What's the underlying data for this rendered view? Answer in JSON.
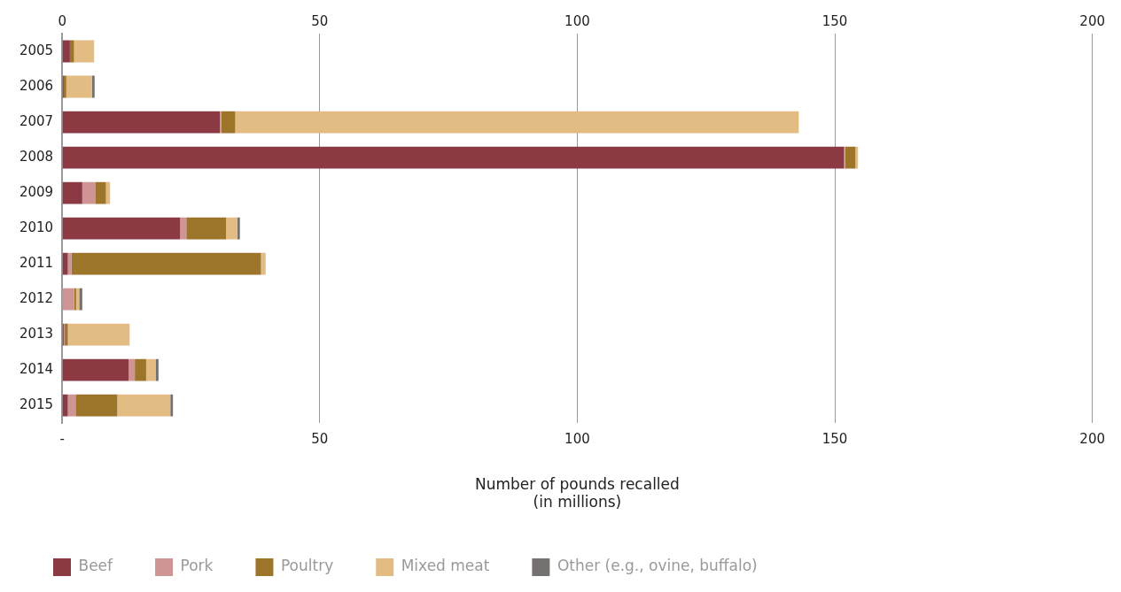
{
  "chart_data": {
    "type": "bar",
    "orientation": "horizontal",
    "stacked": true,
    "categories": [
      "2005",
      "2006",
      "2007",
      "2008",
      "2009",
      "2010",
      "2011",
      "2012",
      "2013",
      "2014",
      "2015"
    ],
    "series": [
      {
        "name": "Beef",
        "color": "#8b3a44",
        "values": [
          1.5,
          0.3,
          30.6,
          151.8,
          3.9,
          22.9,
          1.1,
          0,
          0.3,
          12.9,
          1.1
        ]
      },
      {
        "name": "Pork",
        "color": "#cf9595",
        "values": [
          0,
          0,
          0.3,
          0.2,
          2.5,
          1.2,
          0.7,
          2.3,
          0.2,
          1.2,
          1.5
        ]
      },
      {
        "name": "Poultry",
        "color": "#9c742a",
        "values": [
          0.8,
          0.5,
          2.7,
          2.0,
          2.1,
          7.7,
          36.8,
          0.4,
          0.6,
          2.2,
          8.1
        ]
      },
      {
        "name": "Mixed meat",
        "color": "#e2bc82",
        "values": [
          3.9,
          5.0,
          109.4,
          0.5,
          0.8,
          2.2,
          0.9,
          0.6,
          12.0,
          1.9,
          10.3
        ]
      },
      {
        "name": "Other (e.g., ovine, buffalo)",
        "color": "#767171",
        "values": [
          0,
          0.5,
          0,
          0,
          0,
          0.5,
          0,
          0.6,
          0,
          0.5,
          0.5
        ]
      }
    ],
    "xlabel": "Number of pounds recalled\n(in millions)",
    "xlim": [
      0,
      200
    ],
    "xticks": [
      {
        "value": 0,
        "label": "-"
      },
      50,
      100,
      150,
      200
    ],
    "x2lim": [
      0,
      200
    ],
    "x2ticks": [
      0,
      50,
      100,
      150,
      200
    ],
    "grid": "x",
    "legend": "bottom left"
  }
}
